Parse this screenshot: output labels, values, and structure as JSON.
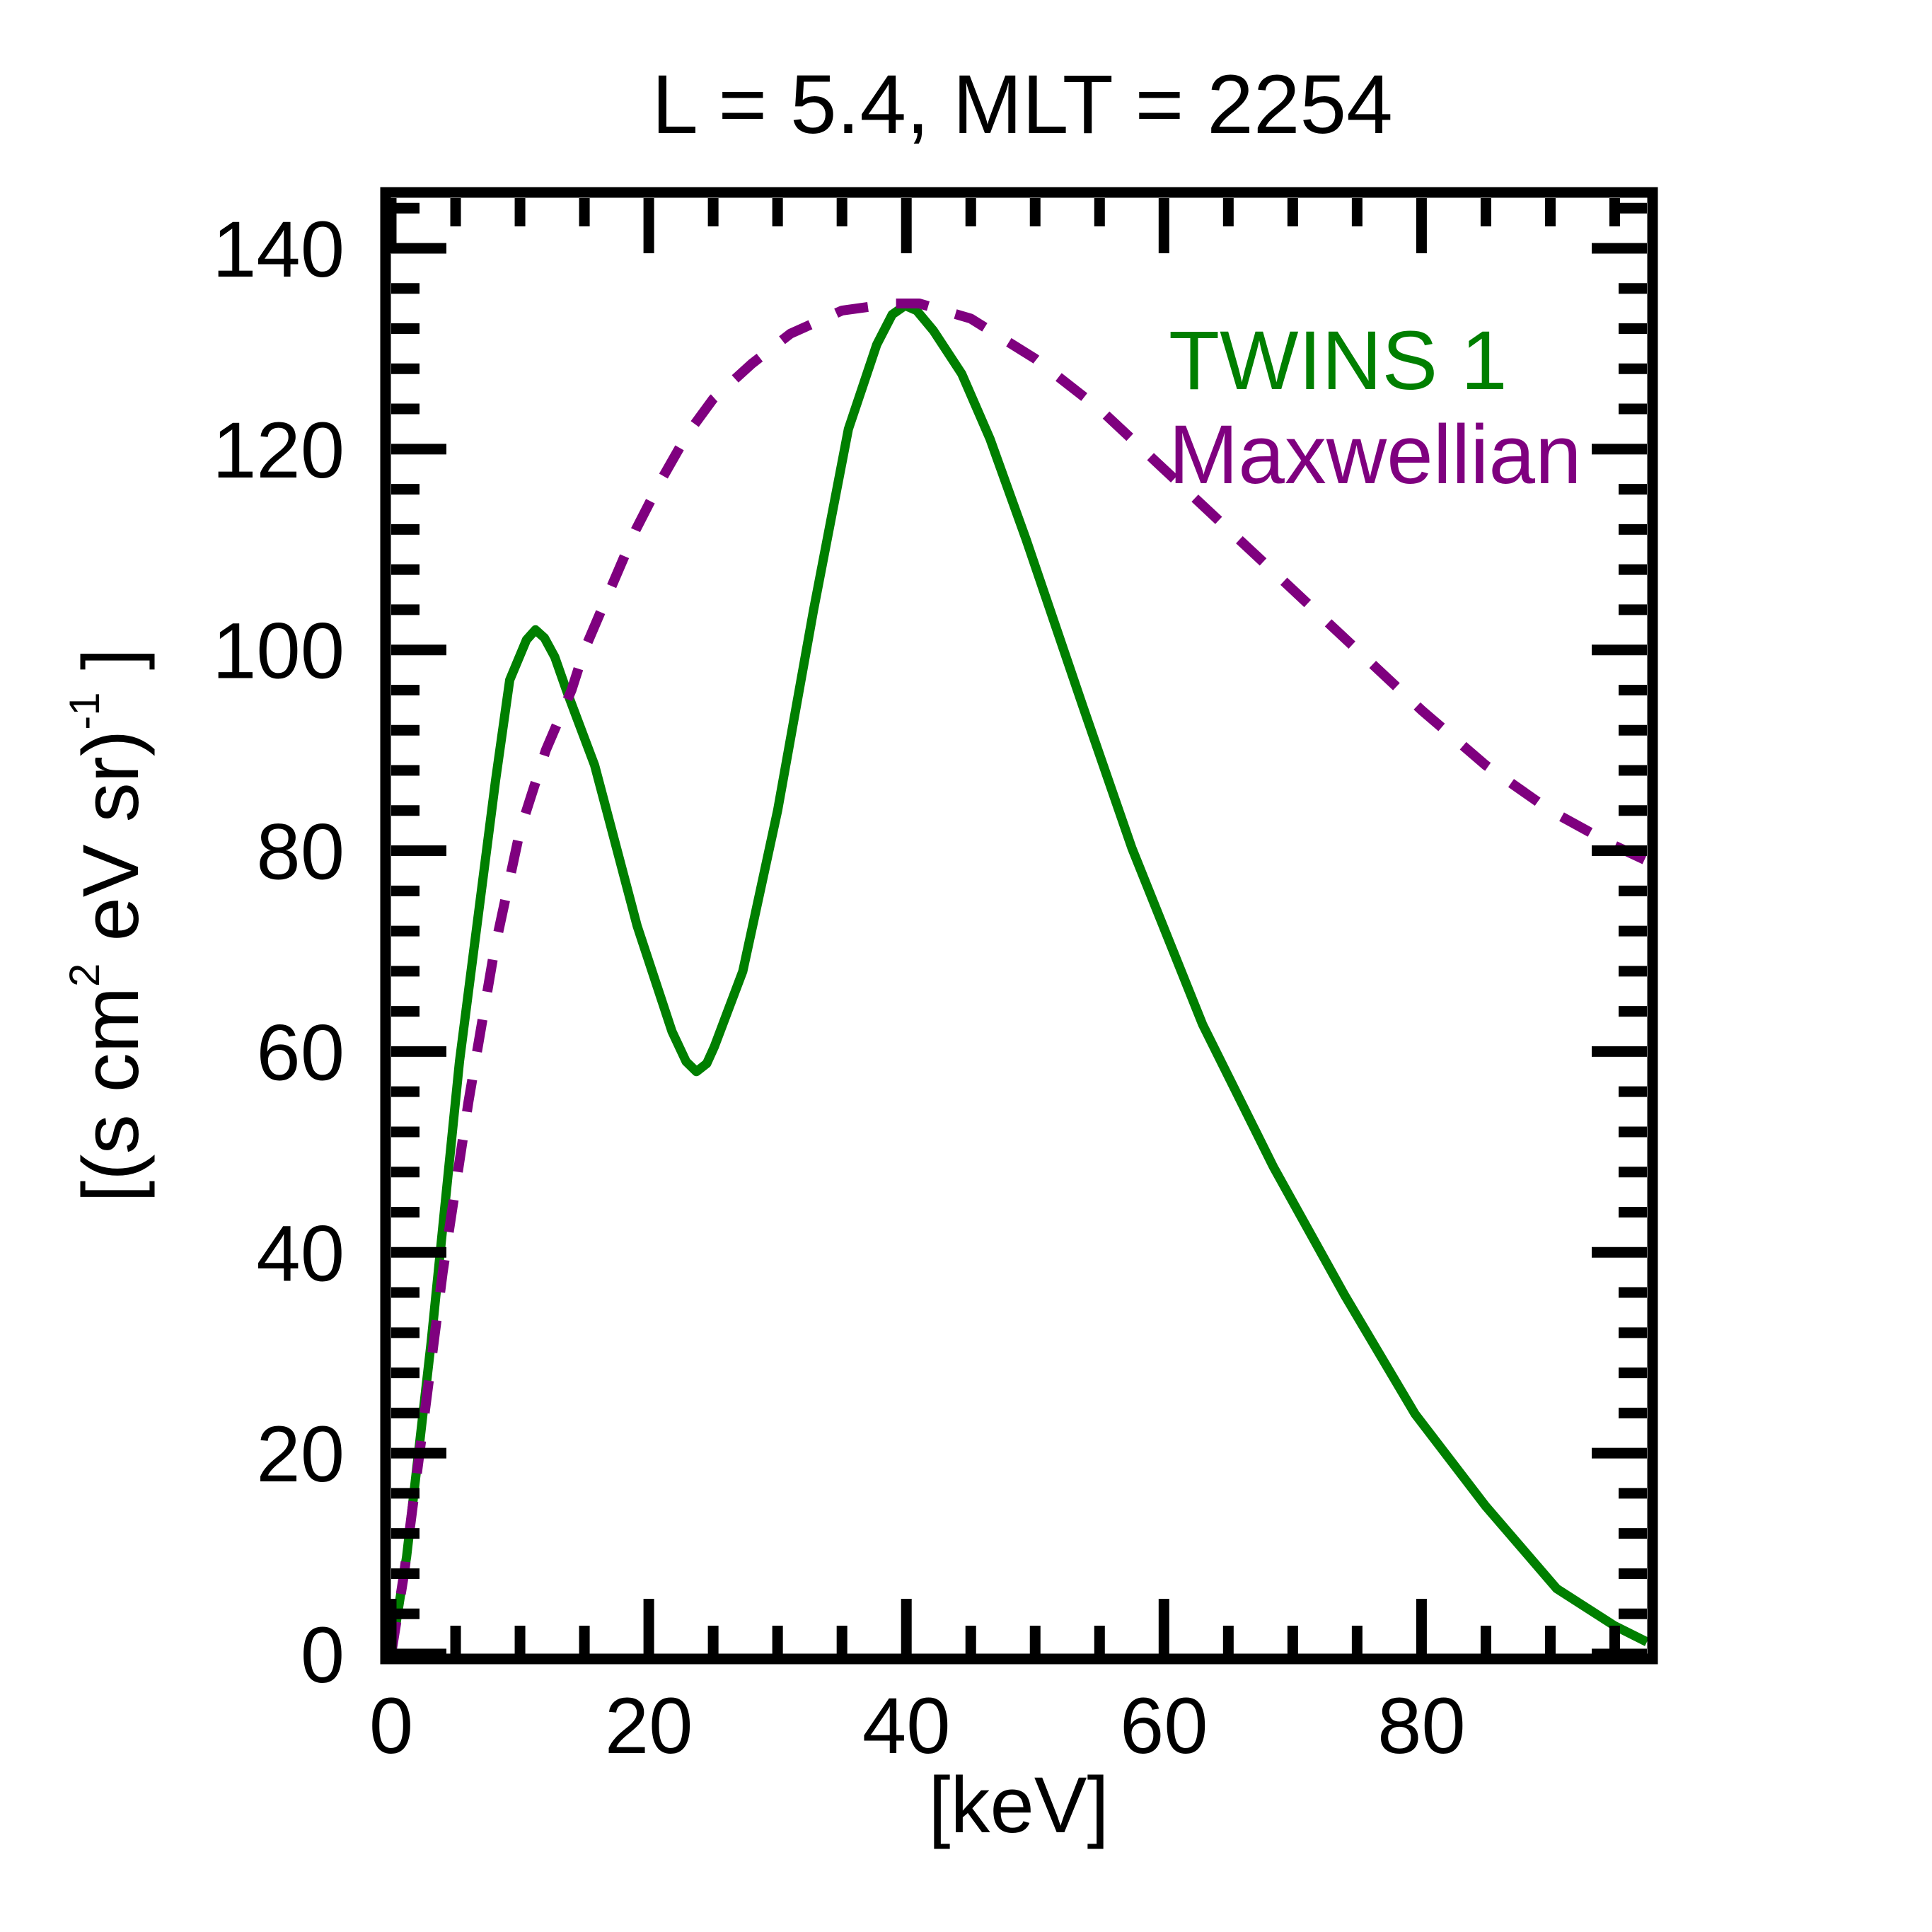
{
  "chart_data": {
    "type": "line",
    "title": "L =  5.4, MLT = 2254",
    "xlabel": "[keV]",
    "ylabel": {
      "prefix": "[(s cm",
      "sup1": "2",
      "middle": " eV sr)",
      "sup2": "-1",
      "suffix": " ]"
    },
    "xlim": [
      0,
      97.5
    ],
    "ylim": [
      0,
      145
    ],
    "xticks": [
      0,
      20,
      40,
      60,
      80
    ],
    "xtick_labels": [
      "0",
      "20",
      "40",
      "60",
      "80"
    ],
    "x_minor_step": 5,
    "yticks": [
      0,
      20,
      40,
      60,
      80,
      100,
      120,
      140
    ],
    "ytick_labels": [
      "0",
      "20",
      "40",
      "60",
      "80",
      "100",
      "120",
      "140"
    ],
    "y_minor_step": 4,
    "grid": false,
    "legend_position": "top-right",
    "series": [
      {
        "name": "TWINS 1",
        "color": "#007f00",
        "style": "solid",
        "x": [
          0,
          1.2,
          3.1,
          5.3,
          8.1,
          9.2,
          10.5,
          11.2,
          11.9,
          12.7,
          13.6,
          15.8,
          19.1,
          21.8,
          22.9,
          23.7,
          24.5,
          25.1,
          27.3,
          30,
          32.8,
          35.5,
          37.7,
          38.9,
          39.9,
          40.8,
          42.1,
          44.3,
          46.5,
          49.3,
          53.7,
          57.5,
          63,
          68.5,
          74,
          79.5,
          85,
          90.5,
          95,
          97.5
        ],
        "y": [
          0,
          9.7,
          31,
          59,
          87,
          97,
          101,
          102,
          101.2,
          99.3,
          96,
          88.5,
          72.5,
          62,
          59,
          58,
          58.8,
          60.5,
          68,
          84,
          104,
          122,
          130.4,
          133.4,
          134.3,
          133.8,
          131.8,
          127.5,
          121,
          111,
          94.4,
          80.3,
          62.7,
          48.5,
          35.8,
          23.9,
          14.7,
          6.5,
          2.8,
          1.2
        ]
      },
      {
        "name": "Maxwellian",
        "color": "#7f007f",
        "style": "dashed",
        "x": [
          0,
          1,
          2,
          3,
          4,
          6,
          8,
          10,
          12,
          14,
          15,
          17,
          19,
          21,
          23,
          25,
          28,
          31,
          35,
          39,
          41,
          45,
          50,
          55,
          60,
          65,
          70,
          75,
          80,
          85,
          90,
          95,
          97.5
        ],
        "y": [
          0,
          8,
          18,
          28,
          38,
          55,
          70,
          82,
          90,
          96,
          100,
          106,
          112,
          117,
          121.5,
          125,
          128.5,
          131.5,
          133.8,
          134.5,
          134.5,
          133,
          129,
          124,
          118,
          112,
          106,
          100,
          94,
          88.5,
          84,
          80.5,
          79
        ]
      }
    ]
  }
}
